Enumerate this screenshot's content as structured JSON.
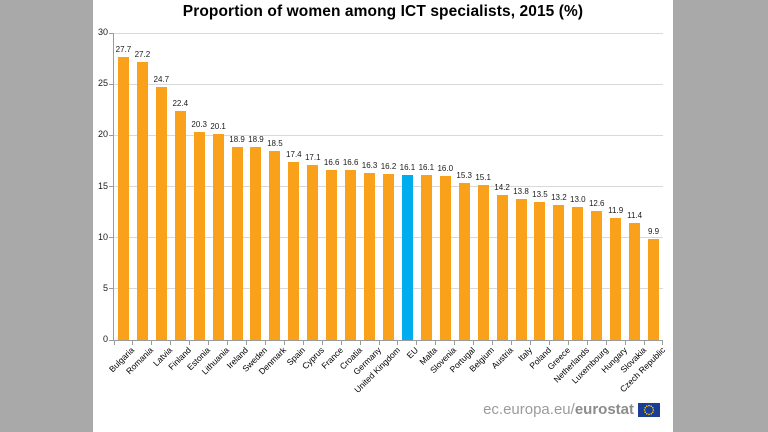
{
  "title": "Proportion of women among ICT specialists, 2015 (%)",
  "chart_data": {
    "type": "bar",
    "title": "Proportion of women among ICT specialists, 2015 (%)",
    "categories": [
      "Bulgaria",
      "Romania",
      "Latvia",
      "Finland",
      "Estonia",
      "Lithuania",
      "Ireland",
      "Sweden",
      "Denmark",
      "Spain",
      "Cyprus",
      "France",
      "Croatia",
      "Germany",
      "United Kingdom",
      "EU",
      "Malta",
      "Slovenia",
      "Portugal",
      "Belgium",
      "Austria",
      "Italy",
      "Poland",
      "Greece",
      "Netherlands",
      "Luxembourg",
      "Hungary",
      "Slovakia",
      "Czech Republic"
    ],
    "values": [
      27.7,
      27.2,
      24.7,
      22.4,
      20.3,
      20.1,
      18.9,
      18.9,
      18.5,
      17.4,
      17.1,
      16.6,
      16.6,
      16.3,
      16.2,
      16.1,
      16.1,
      16.0,
      15.3,
      15.1,
      14.2,
      13.8,
      13.5,
      13.2,
      13.0,
      12.6,
      11.9,
      11.4,
      9.9
    ],
    "highlight_category": "EU",
    "highlight_index": 15,
    "xlabel": "",
    "ylabel": "",
    "ylim": [
      0,
      30
    ],
    "yticks": [
      0,
      5,
      10,
      15,
      20,
      25,
      30
    ],
    "grid": true,
    "legend": "none",
    "value_labels_shown": true
  },
  "colors": {
    "bar": "#f9a11b",
    "highlight_bar": "#00aeef",
    "gridline": "#d9d9d9",
    "axis": "#9b9b9b",
    "background": "#ffffff",
    "side_margin": "#a9a9a9",
    "footer_text": "#9b9b9b",
    "logo_blue": "#1b3e94",
    "logo_stars": "#ffcc00"
  },
  "footer": {
    "url_regular": "ec.europa.eu/",
    "url_bold": "eurostat",
    "logo": "eurostat-eu-flag-icon"
  }
}
